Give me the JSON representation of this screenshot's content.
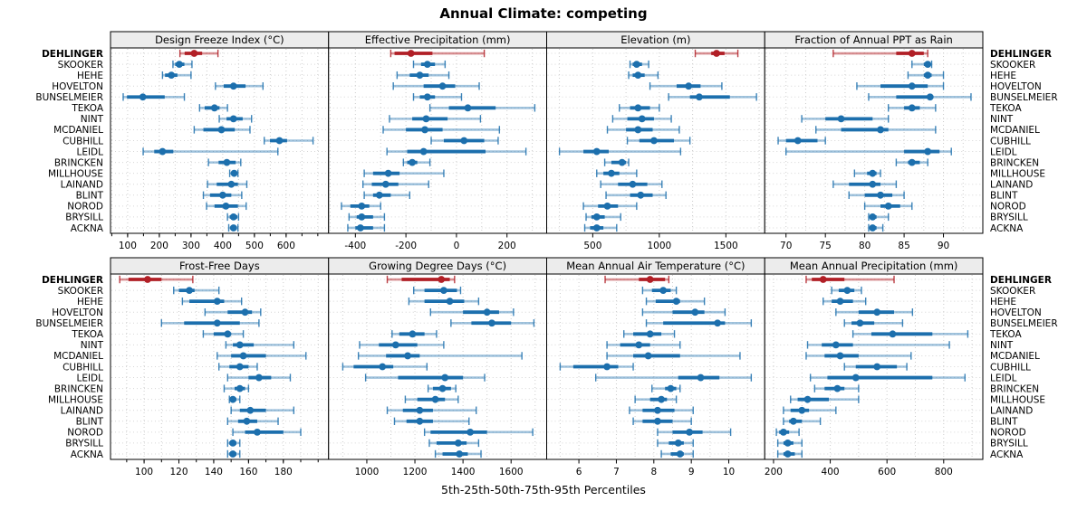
{
  "title": "Annual Climate: competing",
  "xlabel": "5th-25th-50th-75th-95th Percentiles",
  "highlight_site": "DEHLINGER",
  "colors": {
    "normal": "#1c6fad",
    "normal_light": "rgba(28,111,173,0.42)",
    "highlight": "#b11f26",
    "highlight_light": "rgba(177,31,38,0.5)",
    "strip_bg": "#ececec",
    "grid": "#cccccc",
    "panel_border": "#000000"
  },
  "sites": [
    "DEHLINGER",
    "SKOOKER",
    "HEHE",
    "HOVELTON",
    "BUNSELMEIER",
    "TEKOA",
    "NINT",
    "MCDANIEL",
    "CUBHILL",
    "LEIDL",
    "BRINCKEN",
    "MILLHOUSE",
    "LAINAND",
    "BLINT",
    "NOROD",
    "BRYSILL",
    "ACKNA"
  ],
  "chart_data": {
    "type": "dotplot-percentiles",
    "note": "Each row shows 5th-25th-50th-75th-95th percentiles; values arrays are in site order (see sites list). DEHLINGER is highlighted in red.",
    "percentiles": [
      5,
      25,
      50,
      75,
      95
    ],
    "panels": [
      {
        "title": "Design Freeze Index (°C)",
        "grid_row": 0,
        "grid_col": 0,
        "domain": [
          46,
          734
        ],
        "ticks": [
          100,
          200,
          300,
          400,
          500,
          600
        ],
        "grid_step": 50,
        "minor_tick_step": 50,
        "values": [
          [
            265,
            280,
            310,
            335,
            385
          ],
          [
            243,
            250,
            263,
            279,
            303
          ],
          [
            210,
            218,
            238,
            257,
            300
          ],
          [
            377,
            403,
            434,
            472,
            527
          ],
          [
            86,
            98,
            148,
            217,
            279
          ],
          [
            327,
            343,
            374,
            390,
            415
          ],
          [
            389,
            412,
            434,
            463,
            491
          ],
          [
            310,
            339,
            396,
            438,
            486
          ],
          [
            531,
            549,
            579,
            603,
            685
          ],
          [
            149,
            184,
            210,
            244,
            574
          ],
          [
            355,
            387,
            413,
            441,
            457
          ],
          [
            422,
            427,
            436,
            444,
            448
          ],
          [
            352,
            381,
            427,
            448,
            476
          ],
          [
            339,
            360,
            400,
            427,
            460
          ],
          [
            349,
            374,
            410,
            448,
            474
          ],
          [
            415,
            422,
            434,
            446,
            450
          ],
          [
            419,
            424,
            434,
            444,
            448
          ]
        ]
      },
      {
        "title": "Effective Precipitation (mm)",
        "grid_row": 0,
        "grid_col": 1,
        "domain": [
          -506,
          357
        ],
        "ticks": [
          -400,
          -200,
          0,
          200
        ],
        "grid_step": 100,
        "minor_tick_step": null,
        "values": [
          [
            -260,
            -245,
            -180,
            -95,
            110
          ],
          [
            -170,
            -140,
            -115,
            -85,
            -45
          ],
          [
            -235,
            -185,
            -145,
            -110,
            -30
          ],
          [
            -250,
            -130,
            -55,
            -5,
            90
          ],
          [
            -170,
            -145,
            -115,
            -85,
            20
          ],
          [
            -105,
            -30,
            45,
            155,
            310
          ],
          [
            -265,
            -175,
            -120,
            -35,
            95
          ],
          [
            -290,
            -200,
            -125,
            -55,
            170
          ],
          [
            -100,
            -50,
            30,
            110,
            165
          ],
          [
            -275,
            -195,
            -130,
            115,
            275
          ],
          [
            -210,
            -195,
            -175,
            -155,
            -105
          ],
          [
            -365,
            -330,
            -270,
            -225,
            -50
          ],
          [
            -370,
            -335,
            -280,
            -230,
            -110
          ],
          [
            -365,
            -330,
            -305,
            -260,
            -185
          ],
          [
            -455,
            -420,
            -375,
            -345,
            -300
          ],
          [
            -425,
            -395,
            -375,
            -330,
            -285
          ],
          [
            -430,
            -400,
            -380,
            -330,
            -285
          ]
        ]
      },
      {
        "title": "Elevation (m)",
        "grid_row": 0,
        "grid_col": 2,
        "domain": [
          154,
          1792
        ],
        "ticks": [
          500,
          1000,
          1500
        ],
        "grid_step": 250,
        "minor_tick_step": null,
        "values": [
          [
            1270,
            1390,
            1430,
            1490,
            1590
          ],
          [
            780,
            800,
            830,
            870,
            920
          ],
          [
            770,
            800,
            840,
            890,
            990
          ],
          [
            930,
            1130,
            1220,
            1310,
            1470
          ],
          [
            1070,
            1230,
            1300,
            1530,
            1730
          ],
          [
            700,
            780,
            840,
            930,
            1000
          ],
          [
            650,
            760,
            870,
            960,
            1090
          ],
          [
            610,
            750,
            840,
            950,
            1150
          ],
          [
            760,
            850,
            960,
            1110,
            1230
          ],
          [
            250,
            430,
            530,
            620,
            1160
          ],
          [
            590,
            640,
            720,
            750,
            770
          ],
          [
            530,
            580,
            640,
            700,
            830
          ],
          [
            560,
            690,
            800,
            910,
            1020
          ],
          [
            600,
            780,
            860,
            950,
            1050
          ],
          [
            430,
            540,
            610,
            690,
            830
          ],
          [
            450,
            490,
            530,
            590,
            710
          ],
          [
            440,
            480,
            530,
            580,
            680
          ]
        ]
      },
      {
        "title": "Fraction of Annual PPT as Rain",
        "grid_row": 0,
        "grid_col": 3,
        "domain": [
          67.3,
          95
        ],
        "ticks": [
          70,
          75,
          80,
          85,
          90
        ],
        "grid_step": 2.5,
        "minor_tick_step": null,
        "values": [
          [
            76,
            84,
            86,
            87.5,
            88
          ],
          [
            86,
            87.5,
            88,
            88.3,
            88.5
          ],
          [
            85.5,
            87.5,
            88,
            88.5,
            90
          ],
          [
            79,
            82,
            86,
            88,
            90
          ],
          [
            80.5,
            84,
            88.3,
            88.7,
            93.5
          ],
          [
            83,
            85,
            86,
            87,
            89
          ],
          [
            72,
            75,
            77,
            81,
            83
          ],
          [
            73.8,
            77,
            82,
            83,
            89
          ],
          [
            69,
            70,
            71.5,
            74,
            75
          ],
          [
            70,
            85,
            88,
            89.5,
            91
          ],
          [
            84,
            85.5,
            86,
            87,
            88
          ],
          [
            78.7,
            80.3,
            81,
            81.5,
            82
          ],
          [
            76,
            78,
            81,
            82,
            84
          ],
          [
            78,
            80,
            82,
            83.5,
            85
          ],
          [
            80,
            82,
            83,
            84.5,
            86
          ],
          [
            80.5,
            80.8,
            81,
            81.5,
            83
          ],
          [
            80.5,
            80.8,
            81,
            81.5,
            82.3
          ]
        ]
      },
      {
        "title": "Frost-Free Days",
        "grid_row": 1,
        "grid_col": 0,
        "domain": [
          80.7,
          206
        ],
        "ticks": [
          100,
          120,
          140,
          160,
          180
        ],
        "grid_step": 10,
        "minor_tick_step": 10,
        "values": [
          [
            86,
            91,
            102,
            110,
            128
          ],
          [
            117,
            120,
            126,
            129,
            143
          ],
          [
            122,
            126,
            142,
            146,
            156
          ],
          [
            135,
            148,
            158,
            162,
            167
          ],
          [
            110,
            123,
            142,
            155,
            166
          ],
          [
            134,
            140,
            148,
            150,
            157
          ],
          [
            147,
            151,
            155,
            163,
            186
          ],
          [
            142,
            150,
            157,
            170,
            193
          ],
          [
            143,
            149,
            155,
            160,
            165
          ],
          [
            148,
            160,
            166,
            173,
            184
          ],
          [
            146,
            152,
            155,
            158,
            160
          ],
          [
            149,
            150,
            151,
            153,
            155
          ],
          [
            150,
            155,
            161,
            170,
            186
          ],
          [
            148,
            154,
            159,
            165,
            177
          ],
          [
            151,
            158,
            165,
            180,
            190
          ],
          [
            148,
            149,
            151,
            153,
            155
          ],
          [
            148,
            149,
            151,
            153,
            155
          ]
        ]
      },
      {
        "title": "Growing Degree Days (°C)",
        "grid_row": 1,
        "grid_col": 1,
        "domain": [
          841,
          1748
        ],
        "ticks": [
          1000,
          1200,
          1400,
          1600
        ],
        "grid_step": 100,
        "minor_tick_step": null,
        "values": [
          [
            1085,
            1145,
            1310,
            1345,
            1365
          ],
          [
            1195,
            1240,
            1320,
            1375,
            1390
          ],
          [
            1175,
            1240,
            1345,
            1405,
            1465
          ],
          [
            1265,
            1400,
            1500,
            1550,
            1610
          ],
          [
            1350,
            1435,
            1520,
            1600,
            1695
          ],
          [
            1105,
            1135,
            1190,
            1240,
            1290
          ],
          [
            970,
            1050,
            1120,
            1210,
            1320
          ],
          [
            965,
            1080,
            1170,
            1220,
            1645
          ],
          [
            900,
            945,
            1065,
            1110,
            1250
          ],
          [
            995,
            1130,
            1325,
            1400,
            1490
          ],
          [
            1255,
            1275,
            1315,
            1350,
            1370
          ],
          [
            1160,
            1210,
            1285,
            1325,
            1380
          ],
          [
            1085,
            1150,
            1220,
            1275,
            1455
          ],
          [
            1115,
            1165,
            1220,
            1275,
            1425
          ],
          [
            1240,
            1265,
            1430,
            1500,
            1690
          ],
          [
            1260,
            1290,
            1380,
            1415,
            1465
          ],
          [
            1285,
            1315,
            1385,
            1420,
            1475
          ]
        ]
      },
      {
        "title": "Mean Annual Air Temperature (°C)",
        "grid_row": 1,
        "grid_col": 2,
        "domain": [
          5.14,
          10.96
        ],
        "ticks": [
          6,
          7,
          8,
          9,
          10
        ],
        "grid_step": 0.5,
        "minor_tick_step": null,
        "values": [
          [
            6.7,
            7.6,
            7.9,
            8.3,
            8.4
          ],
          [
            7.7,
            7.95,
            8.25,
            8.45,
            8.6
          ],
          [
            7.8,
            8.05,
            8.6,
            8.7,
            9.35
          ],
          [
            7.7,
            8.5,
            9.1,
            9.35,
            9.9
          ],
          [
            7.8,
            8.25,
            9.7,
            9.9,
            10.6
          ],
          [
            7.2,
            7.45,
            7.9,
            8.2,
            8.55
          ],
          [
            6.75,
            7.1,
            7.6,
            7.9,
            8.7
          ],
          [
            6.75,
            7.45,
            7.85,
            8.7,
            10.3
          ],
          [
            5.5,
            5.85,
            6.75,
            7.05,
            7.45
          ],
          [
            6.45,
            8.65,
            9.25,
            9.75,
            10.6
          ],
          [
            7.95,
            8.3,
            8.45,
            8.6,
            8.7
          ],
          [
            7.5,
            7.9,
            8.2,
            8.35,
            8.6
          ],
          [
            7.35,
            7.7,
            8.1,
            8.55,
            9.05
          ],
          [
            7.45,
            7.7,
            8.1,
            8.5,
            9.0
          ],
          [
            8.1,
            8.5,
            8.95,
            9.3,
            10.05
          ],
          [
            8.1,
            8.4,
            8.65,
            8.8,
            9.05
          ],
          [
            8.2,
            8.45,
            8.7,
            8.8,
            9.05
          ]
        ]
      },
      {
        "title": "Mean Annual Precipitation (mm)",
        "grid_row": 1,
        "grid_col": 3,
        "domain": [
          169,
          938
        ],
        "ticks": [
          200,
          400,
          600,
          800
        ],
        "grid_step": 100,
        "minor_tick_step": null,
        "values": [
          [
            315,
            335,
            375,
            450,
            625
          ],
          [
            405,
            430,
            460,
            485,
            510
          ],
          [
            375,
            405,
            435,
            480,
            525
          ],
          [
            420,
            500,
            565,
            625,
            690
          ],
          [
            450,
            475,
            505,
            555,
            655
          ],
          [
            480,
            545,
            620,
            760,
            885
          ],
          [
            320,
            370,
            420,
            480,
            820
          ],
          [
            315,
            380,
            435,
            500,
            685
          ],
          [
            450,
            490,
            565,
            635,
            670
          ],
          [
            330,
            390,
            490,
            760,
            875
          ],
          [
            345,
            380,
            425,
            450,
            500
          ],
          [
            260,
            285,
            320,
            395,
            500
          ],
          [
            235,
            260,
            300,
            325,
            420
          ],
          [
            235,
            255,
            270,
            300,
            365
          ],
          [
            210,
            220,
            235,
            255,
            290
          ],
          [
            215,
            235,
            250,
            270,
            300
          ],
          [
            215,
            235,
            250,
            275,
            300
          ]
        ]
      }
    ]
  }
}
